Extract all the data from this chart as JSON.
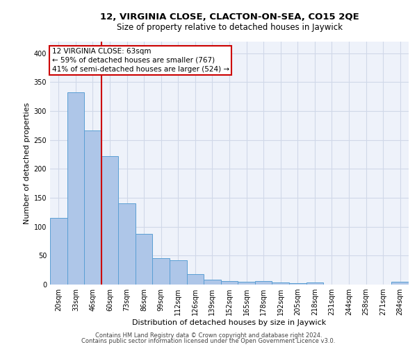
{
  "title1": "12, VIRGINIA CLOSE, CLACTON-ON-SEA, CO15 2QE",
  "title2": "Size of property relative to detached houses in Jaywick",
  "xlabel": "Distribution of detached houses by size in Jaywick",
  "ylabel": "Number of detached properties",
  "footer1": "Contains HM Land Registry data © Crown copyright and database right 2024.",
  "footer2": "Contains public sector information licensed under the Open Government Licence v3.0.",
  "categories": [
    "20sqm",
    "33sqm",
    "46sqm",
    "60sqm",
    "73sqm",
    "86sqm",
    "99sqm",
    "112sqm",
    "126sqm",
    "139sqm",
    "152sqm",
    "165sqm",
    "178sqm",
    "192sqm",
    "205sqm",
    "218sqm",
    "231sqm",
    "244sqm",
    "258sqm",
    "271sqm",
    "284sqm"
  ],
  "values": [
    115,
    333,
    267,
    222,
    141,
    88,
    46,
    42,
    18,
    9,
    6,
    5,
    6,
    4,
    3,
    4,
    0,
    0,
    0,
    0,
    5
  ],
  "bar_color": "#aec6e8",
  "bar_edge_color": "#5a9fd4",
  "grid_color": "#d0d8e8",
  "bg_color": "#eef2fa",
  "annotation_text_line1": "12 VIRGINIA CLOSE: 63sqm",
  "annotation_text_line2": "← 59% of detached houses are smaller (767)",
  "annotation_text_line3": "41% of semi-detached houses are larger (524) →",
  "vline_color": "#cc0000",
  "annotation_box_color": "#ffffff",
  "annotation_box_edge": "#cc0000",
  "ylim": [
    0,
    420
  ],
  "yticks": [
    0,
    50,
    100,
    150,
    200,
    250,
    300,
    350,
    400
  ],
  "title1_fontsize": 9.5,
  "title2_fontsize": 8.5,
  "xlabel_fontsize": 8,
  "ylabel_fontsize": 8,
  "tick_fontsize": 7,
  "footer_fontsize": 6,
  "annot_fontsize": 7.5
}
